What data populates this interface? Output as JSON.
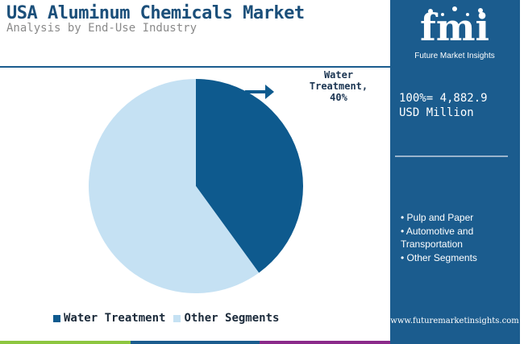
{
  "header": {
    "title": "USA Aluminum Chemicals Market",
    "subtitle": "Analysis by End-Use Industry"
  },
  "chart_data": {
    "type": "pie",
    "categories": [
      "Water Treatment",
      "Other Segments"
    ],
    "values": [
      40,
      60
    ],
    "unit": "%",
    "colors": [
      "#0e5a8e",
      "#c5e1f3"
    ],
    "callout": {
      "label": "Water Treatment,",
      "value": "40%"
    },
    "legend": [
      "Water Treatment",
      "Other Segments"
    ],
    "legend_position": "bottom"
  },
  "sidebar": {
    "logo_text": "fmi",
    "logo_subtitle": "Future Market Insights",
    "total_line1": "100%= 4,882.9",
    "total_line2": "USD Million",
    "segments": [
      "• Pulp and Paper",
      "• Automotive and Transportation",
      "• Other Segments"
    ],
    "url": "www.futuremarketinsights.com"
  },
  "footer": {
    "bar_colors": [
      "#8dc63f",
      "#1b5c8e",
      "#8b2a8a"
    ]
  }
}
